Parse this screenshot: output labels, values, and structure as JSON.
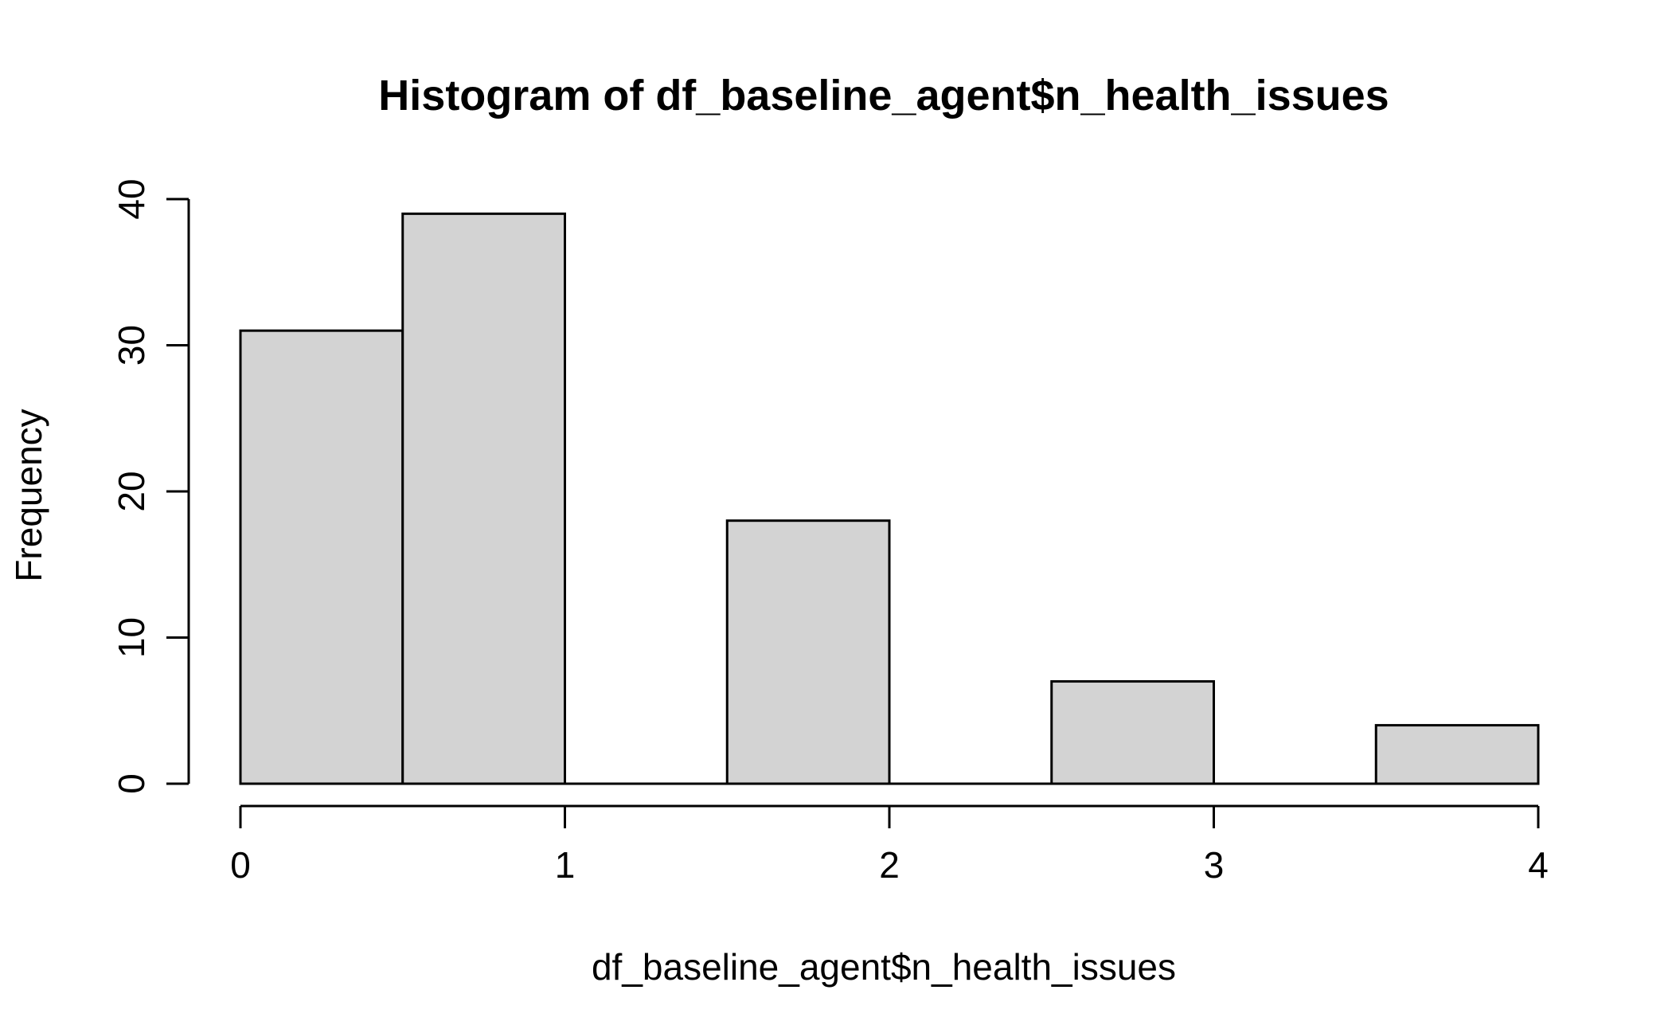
{
  "chart_data": {
    "type": "bar",
    "title": "Histogram of df_baseline_agent$n_health_issues",
    "xlabel": "df_baseline_agent$n_health_issues",
    "ylabel": "Frequency",
    "bins": [
      {
        "from": 0.0,
        "to": 0.5,
        "count": 31
      },
      {
        "from": 0.5,
        "to": 1.0,
        "count": 39
      },
      {
        "from": 1.0,
        "to": 1.5,
        "count": 0
      },
      {
        "from": 1.5,
        "to": 2.0,
        "count": 18
      },
      {
        "from": 2.0,
        "to": 2.5,
        "count": 0
      },
      {
        "from": 2.5,
        "to": 3.0,
        "count": 7
      },
      {
        "from": 3.0,
        "to": 3.5,
        "count": 0
      },
      {
        "from": 3.5,
        "to": 4.0,
        "count": 4
      }
    ],
    "xlim": [
      0,
      4
    ],
    "ylim": [
      0,
      40
    ],
    "x_ticks": [
      "0",
      "1",
      "2",
      "3",
      "4"
    ],
    "y_ticks": [
      "0",
      "10",
      "20",
      "30",
      "40"
    ],
    "bar_color": "#d3d3d3",
    "border_color": "#000000",
    "grid": false,
    "legend": "none"
  }
}
